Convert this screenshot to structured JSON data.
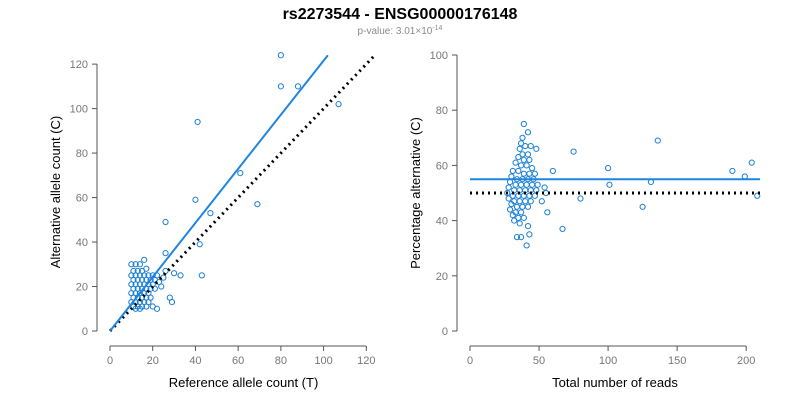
{
  "title": "rs2273544 - ENSG00000176148",
  "subtitle": {
    "prefix": "p-value: 3.01×10",
    "exponent": "-14"
  },
  "colors": {
    "points": "#1a7fd6",
    "fit_line": "#1f86e0",
    "reference_line": "#000000",
    "axis": "#555555",
    "tick_text": "#777777"
  },
  "chart_data": [
    {
      "type": "scatter",
      "title": "",
      "xlabel": "Reference allele count (T)",
      "ylabel": "Alternative allele count (C)",
      "xlim": [
        0,
        125
      ],
      "ylim": [
        0,
        125
      ],
      "xticks": [
        0,
        20,
        40,
        60,
        80,
        100,
        120
      ],
      "yticks": [
        0,
        20,
        40,
        60,
        80,
        100,
        120
      ],
      "fit_line": [
        [
          0,
          0
        ],
        [
          102,
          124
        ]
      ],
      "reference_line": [
        [
          0,
          0
        ],
        [
          124,
          124
        ]
      ],
      "points": [
        [
          80,
          124
        ],
        [
          80,
          110
        ],
        [
          88,
          110
        ],
        [
          107,
          102
        ],
        [
          41,
          94
        ],
        [
          40,
          59
        ],
        [
          61,
          71
        ],
        [
          69,
          57
        ],
        [
          47,
          53
        ],
        [
          26,
          49
        ],
        [
          42,
          39
        ],
        [
          43,
          25
        ],
        [
          33,
          25
        ],
        [
          26,
          35
        ],
        [
          30,
          26
        ],
        [
          26,
          27
        ],
        [
          28,
          15
        ],
        [
          29,
          13
        ],
        [
          10,
          30
        ],
        [
          12,
          30
        ],
        [
          14,
          30
        ],
        [
          16,
          32
        ],
        [
          11,
          27
        ],
        [
          13,
          27
        ],
        [
          15,
          27
        ],
        [
          17,
          28
        ],
        [
          10,
          25
        ],
        [
          12,
          25
        ],
        [
          14,
          25
        ],
        [
          16,
          25
        ],
        [
          18,
          25
        ],
        [
          20,
          25
        ],
        [
          22,
          25
        ],
        [
          11,
          23
        ],
        [
          13,
          23
        ],
        [
          15,
          23
        ],
        [
          17,
          23
        ],
        [
          19,
          23
        ],
        [
          21,
          23
        ],
        [
          10,
          21
        ],
        [
          12,
          21
        ],
        [
          14,
          21
        ],
        [
          16,
          21
        ],
        [
          18,
          21
        ],
        [
          20,
          21
        ],
        [
          11,
          19
        ],
        [
          13,
          19
        ],
        [
          15,
          19
        ],
        [
          17,
          19
        ],
        [
          19,
          19
        ],
        [
          10,
          17
        ],
        [
          12,
          17
        ],
        [
          14,
          17
        ],
        [
          16,
          17
        ],
        [
          18,
          17
        ],
        [
          11,
          15
        ],
        [
          13,
          15
        ],
        [
          15,
          15
        ],
        [
          17,
          15
        ],
        [
          19,
          15
        ],
        [
          10,
          13
        ],
        [
          12,
          13
        ],
        [
          14,
          13
        ],
        [
          16,
          13
        ],
        [
          18,
          13
        ],
        [
          11,
          11
        ],
        [
          13,
          11
        ],
        [
          15,
          11
        ],
        [
          17,
          11
        ],
        [
          20,
          11
        ],
        [
          12,
          10
        ],
        [
          14,
          10
        ],
        [
          22,
          10
        ],
        [
          24,
          20
        ],
        [
          23,
          22
        ],
        [
          21,
          19
        ],
        [
          25,
          24
        ]
      ]
    },
    {
      "type": "scatter",
      "title": "",
      "xlabel": "Total number of reads",
      "ylabel": "Percentage alternative (C)",
      "xlim": [
        0,
        210
      ],
      "ylim": [
        0,
        100
      ],
      "xticks": [
        0,
        50,
        100,
        150,
        200
      ],
      "yticks": [
        0,
        20,
        40,
        60,
        80,
        100
      ],
      "fit_line": [
        [
          0,
          55
        ],
        [
          210,
          55
        ]
      ],
      "reference_line": [
        [
          0,
          50
        ],
        [
          210,
          50
        ]
      ],
      "points": [
        [
          39,
          75
        ],
        [
          42,
          72
        ],
        [
          38,
          70
        ],
        [
          37,
          68
        ],
        [
          40,
          67
        ],
        [
          44,
          67
        ],
        [
          48,
          66
        ],
        [
          36,
          66
        ],
        [
          38,
          64
        ],
        [
          42,
          64
        ],
        [
          35,
          63
        ],
        [
          39,
          62
        ],
        [
          43,
          62
        ],
        [
          33,
          61
        ],
        [
          37,
          60
        ],
        [
          41,
          60
        ],
        [
          45,
          59
        ],
        [
          31,
          58
        ],
        [
          35,
          58
        ],
        [
          39,
          57
        ],
        [
          43,
          57
        ],
        [
          47,
          57
        ],
        [
          30,
          56
        ],
        [
          34,
          55
        ],
        [
          38,
          55
        ],
        [
          42,
          55
        ],
        [
          46,
          55
        ],
        [
          29,
          54
        ],
        [
          33,
          53
        ],
        [
          37,
          53
        ],
        [
          41,
          53
        ],
        [
          45,
          53
        ],
        [
          49,
          53
        ],
        [
          28,
          52
        ],
        [
          32,
          51
        ],
        [
          36,
          51
        ],
        [
          40,
          51
        ],
        [
          44,
          51
        ],
        [
          48,
          51
        ],
        [
          27,
          50
        ],
        [
          31,
          49
        ],
        [
          35,
          49
        ],
        [
          39,
          49
        ],
        [
          43,
          49
        ],
        [
          47,
          49
        ],
        [
          28,
          48
        ],
        [
          32,
          47
        ],
        [
          36,
          47
        ],
        [
          40,
          47
        ],
        [
          44,
          47
        ],
        [
          30,
          46
        ],
        [
          34,
          45
        ],
        [
          38,
          45
        ],
        [
          42,
          45
        ],
        [
          29,
          44
        ],
        [
          33,
          43
        ],
        [
          37,
          43
        ],
        [
          31,
          42
        ],
        [
          35,
          41
        ],
        [
          39,
          41
        ],
        [
          32,
          40
        ],
        [
          36,
          39
        ],
        [
          42,
          38
        ],
        [
          52,
          47
        ],
        [
          56,
          43
        ],
        [
          60,
          58
        ],
        [
          55,
          50
        ],
        [
          54,
          52
        ],
        [
          34,
          34
        ],
        [
          37,
          34
        ],
        [
          43,
          35
        ],
        [
          41,
          31
        ],
        [
          67,
          37
        ],
        [
          75,
          65
        ],
        [
          80,
          48
        ],
        [
          100,
          59
        ],
        [
          101,
          53
        ],
        [
          125,
          45
        ],
        [
          131,
          54
        ],
        [
          136,
          69
        ],
        [
          190,
          58
        ],
        [
          199,
          56
        ],
        [
          204,
          61
        ],
        [
          208,
          49
        ]
      ]
    }
  ]
}
